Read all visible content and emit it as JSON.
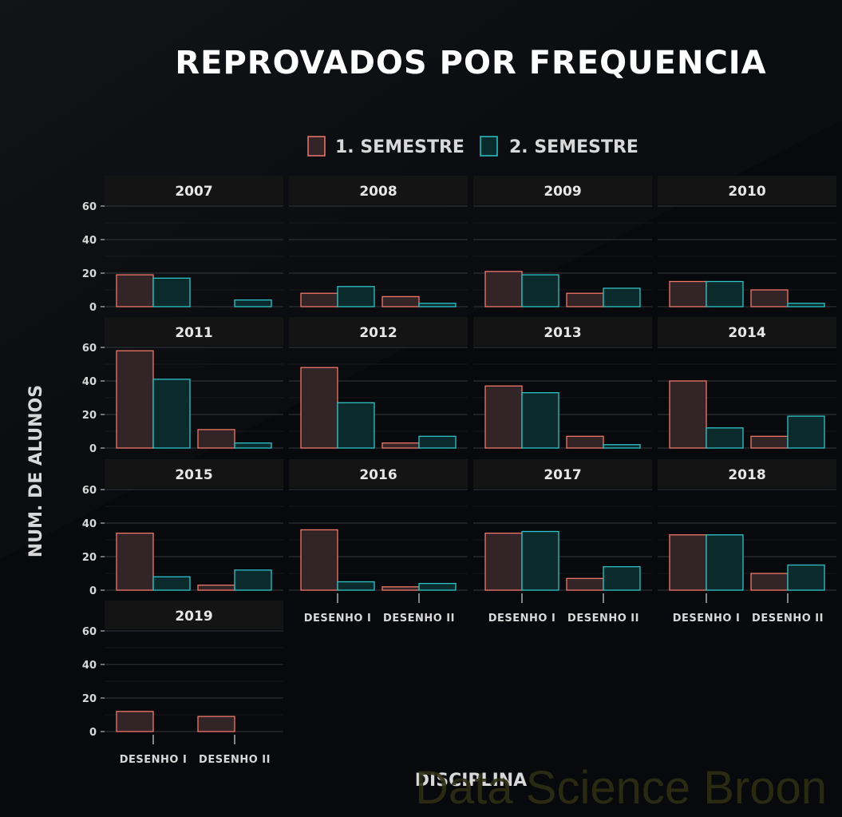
{
  "colors": {
    "background": "#07090c",
    "strip_bg": "#141414",
    "grid": "#3a3d42",
    "text": "#e6e6e6",
    "axis_text": "#d8d8d8",
    "sem1_fill": "#322427",
    "sem1_stroke": "#f07868",
    "sem2_fill": "#0b2a2c",
    "sem2_stroke": "#2ec4c9",
    "watermark": "#2e2e14"
  },
  "chart_data": {
    "type": "bar",
    "title": "REPROVADOS POR FREQUENCIA",
    "xlabel": "DISCIPLINA",
    "ylabel": "NUM. DE ALUNOS",
    "ylim": [
      0,
      60
    ],
    "yticks": [
      0,
      20,
      40,
      60
    ],
    "grid": true,
    "legend_position": "top",
    "categories": [
      "DESENHO I",
      "DESENHO II"
    ],
    "series_names": [
      "1. SEMESTRE",
      "2. SEMESTRE"
    ],
    "facets": [
      {
        "year": "2007",
        "sem1": [
          19,
          0
        ],
        "sem2": [
          17,
          4
        ]
      },
      {
        "year": "2008",
        "sem1": [
          8,
          6
        ],
        "sem2": [
          12,
          2
        ]
      },
      {
        "year": "2009",
        "sem1": [
          21,
          8
        ],
        "sem2": [
          19,
          11
        ]
      },
      {
        "year": "2010",
        "sem1": [
          15,
          10
        ],
        "sem2": [
          15,
          2
        ]
      },
      {
        "year": "2011",
        "sem1": [
          58,
          11
        ],
        "sem2": [
          41,
          3
        ]
      },
      {
        "year": "2012",
        "sem1": [
          48,
          3
        ],
        "sem2": [
          27,
          7
        ]
      },
      {
        "year": "2013",
        "sem1": [
          37,
          7
        ],
        "sem2": [
          33,
          2
        ]
      },
      {
        "year": "2014",
        "sem1": [
          40,
          7
        ],
        "sem2": [
          12,
          19
        ]
      },
      {
        "year": "2015",
        "sem1": [
          34,
          3
        ],
        "sem2": [
          8,
          12
        ]
      },
      {
        "year": "2016",
        "sem1": [
          36,
          2
        ],
        "sem2": [
          5,
          4
        ]
      },
      {
        "year": "2017",
        "sem1": [
          34,
          7
        ],
        "sem2": [
          35,
          14
        ]
      },
      {
        "year": "2018",
        "sem1": [
          33,
          10
        ],
        "sem2": [
          33,
          15
        ]
      },
      {
        "year": "2019",
        "sem1": [
          12,
          9
        ],
        "sem2": [
          null,
          null
        ]
      }
    ]
  },
  "watermark": "Data Science Broon"
}
